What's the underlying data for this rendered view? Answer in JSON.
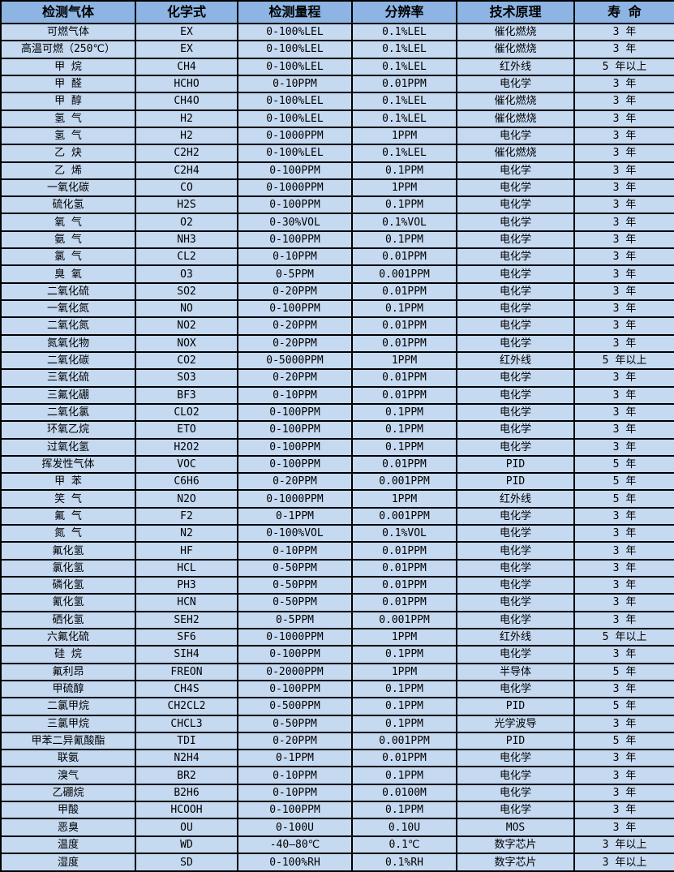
{
  "colors": {
    "header_bg": "#8db4e2",
    "row_bg": "#c5d9f1",
    "border": "#000000",
    "text": "#000000"
  },
  "table": {
    "headers": [
      "检测气体",
      "化学式",
      "检测量程",
      "分辨率",
      "技术原理",
      "寿 命"
    ],
    "rows": [
      [
        "可燃气体",
        "EX",
        "0-100%LEL",
        "0.1%LEL",
        "催化燃烧",
        "3 年"
      ],
      [
        "高温可燃（250℃）",
        "EX",
        "0-100%LEL",
        "0.1%LEL",
        "催化燃烧",
        "3 年"
      ],
      [
        "甲 烷",
        "CH4",
        "0-100%LEL",
        "0.1%LEL",
        "红外线",
        "5 年以上"
      ],
      [
        "甲 醛",
        "HCHO",
        "0-10PPM",
        "0.01PPM",
        "电化学",
        "3 年"
      ],
      [
        "甲 醇",
        "CH4O",
        "0-100%LEL",
        "0.1%LEL",
        "催化燃烧",
        "3 年"
      ],
      [
        "氢 气",
        "H2",
        "0-100%LEL",
        "0.1%LEL",
        "催化燃烧",
        "3 年"
      ],
      [
        "氢 气",
        "H2",
        "0-1000PPM",
        "1PPM",
        "电化学",
        "3 年"
      ],
      [
        "乙 炔",
        "C2H2",
        "0-100%LEL",
        "0.1%LEL",
        "催化燃烧",
        "3 年"
      ],
      [
        "乙 烯",
        "C2H4",
        "0-100PPM",
        "0.1PPM",
        "电化学",
        "3 年"
      ],
      [
        "一氧化碳",
        "CO",
        "0-1000PPM",
        "1PPM",
        "电化学",
        "3 年"
      ],
      [
        "硫化氢",
        "H2S",
        "0-100PPM",
        "0.1PPM",
        "电化学",
        "3 年"
      ],
      [
        "氧 气",
        "O2",
        "0-30%VOL",
        "0.1%VOL",
        "电化学",
        "3 年"
      ],
      [
        "氨 气",
        "NH3",
        "0-100PPM",
        "0.1PPM",
        "电化学",
        "3 年"
      ],
      [
        "氯 气",
        "CL2",
        "0-10PPM",
        "0.01PPM",
        "电化学",
        "3 年"
      ],
      [
        "臭 氧",
        "O3",
        "0-5PPM",
        "0.001PPM",
        "电化学",
        "3 年"
      ],
      [
        "二氧化硫",
        "SO2",
        "0-20PPM",
        "0.01PPM",
        "电化学",
        "3 年"
      ],
      [
        "一氧化氮",
        "NO",
        "0-100PPM",
        "0.1PPM",
        "电化学",
        "3 年"
      ],
      [
        "二氧化氮",
        "NO2",
        "0-20PPM",
        "0.01PPM",
        "电化学",
        "3 年"
      ],
      [
        "氮氧化物",
        "NOX",
        "0-20PPM",
        "0.01PPM",
        "电化学",
        "3 年"
      ],
      [
        "二氧化碳",
        "CO2",
        "0-5000PPM",
        "1PPM",
        "红外线",
        "5 年以上"
      ],
      [
        "三氧化硫",
        "SO3",
        "0-20PPM",
        "0.01PPM",
        "电化学",
        "3 年"
      ],
      [
        "三氟化硼",
        "BF3",
        "0-10PPM",
        "0.01PPM",
        "电化学",
        "3 年"
      ],
      [
        "二氧化氯",
        "CLO2",
        "0-100PPM",
        "0.1PPM",
        "电化学",
        "3 年"
      ],
      [
        "环氧乙烷",
        "ETO",
        "0-100PPM",
        "0.1PPM",
        "电化学",
        "3 年"
      ],
      [
        "过氧化氢",
        "H2O2",
        "0-100PPM",
        "0.1PPM",
        "电化学",
        "3 年"
      ],
      [
        "挥发性气体",
        "VOC",
        "0-100PPM",
        "0.01PPM",
        "PID",
        "5 年"
      ],
      [
        "甲 苯",
        "C6H6",
        "0-20PPM",
        "0.001PPM",
        "PID",
        "5 年"
      ],
      [
        "笑 气",
        "N2O",
        "0-1000PPM",
        "1PPM",
        "红外线",
        "5 年"
      ],
      [
        "氟 气",
        "F2",
        "0-1PPM",
        "0.001PPM",
        "电化学",
        "3 年"
      ],
      [
        "氮 气",
        "N2",
        "0-100%VOL",
        "0.1%VOL",
        "电化学",
        "3 年"
      ],
      [
        "氟化氢",
        "HF",
        "0-10PPM",
        "0.01PPM",
        "电化学",
        "3 年"
      ],
      [
        "氯化氢",
        "HCL",
        "0-50PPM",
        "0.01PPM",
        "电化学",
        "3 年"
      ],
      [
        "磷化氢",
        "PH3",
        "0-50PPM",
        "0.01PPM",
        "电化学",
        "3 年"
      ],
      [
        "氰化氢",
        "HCN",
        "0-50PPM",
        "0.01PPM",
        "电化学",
        "3 年"
      ],
      [
        "硒化氢",
        "SEH2",
        "0-5PPM",
        "0.001PPM",
        "电化学",
        "3 年"
      ],
      [
        "六氟化硫",
        "SF6",
        "0-1000PPM",
        "1PPM",
        "红外线",
        "5 年以上"
      ],
      [
        "硅 烷",
        "SIH4",
        "0-100PPM",
        "0.1PPM",
        "电化学",
        "3 年"
      ],
      [
        "氟利昂",
        "FREON",
        "0-2000PPM",
        "1PPM",
        "半导体",
        "5 年"
      ],
      [
        "甲硫醇",
        "CH4S",
        "0-100PPM",
        "0.1PPM",
        "电化学",
        "3 年"
      ],
      [
        "二氯甲烷",
        "CH2CL2",
        "0-500PPM",
        "0.1PPM",
        "PID",
        "5 年"
      ],
      [
        "三氯甲烷",
        "CHCL3",
        "0-50PPM",
        "0.1PPM",
        "光学波导",
        "3 年"
      ],
      [
        "甲苯二异氰酸酯",
        "TDI",
        "0-20PPM",
        "0.001PPM",
        "PID",
        "5 年"
      ],
      [
        "联氨",
        "N2H4",
        "0-1PPM",
        "0.01PPM",
        "电化学",
        "3 年"
      ],
      [
        "溴气",
        "BR2",
        "0-10PPM",
        "0.1PPM",
        "电化学",
        "3 年"
      ],
      [
        "乙硼烷",
        "B2H6",
        "0-10PPM",
        "0.0100M",
        "电化学",
        "3 年"
      ],
      [
        "甲酸",
        "HCOOH",
        "0-100PPM",
        "0.1PPM",
        "电化学",
        "3 年"
      ],
      [
        "恶臭",
        "OU",
        "0-100U",
        "0.10U",
        "MOS",
        "3 年"
      ],
      [
        "温度",
        "WD",
        "-40—80℃",
        "0.1℃",
        "数字芯片",
        "3 年以上"
      ],
      [
        "湿度",
        "SD",
        "0-100%RH",
        "0.1%RH",
        "数字芯片",
        "3 年以上"
      ]
    ]
  }
}
